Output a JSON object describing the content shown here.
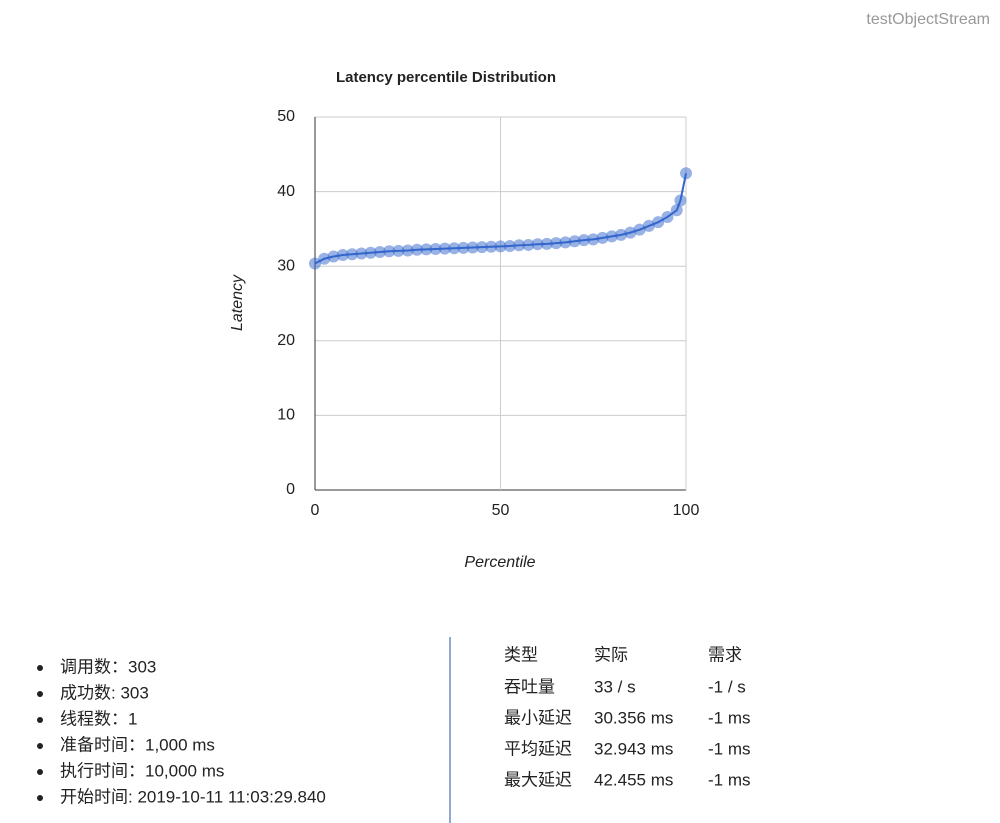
{
  "header": "testObjectStream",
  "chart_data": {
    "type": "line",
    "title": "Latency percentile Distribution",
    "x_label": "Percentile",
    "y_label": "Latency",
    "x": [
      0,
      2.5,
      5,
      7.5,
      10,
      12.5,
      15,
      17.5,
      20,
      22.5,
      25,
      27.5,
      30,
      32.5,
      35,
      37.5,
      40,
      42.5,
      45,
      47.5,
      50,
      52.5,
      55,
      57.5,
      60,
      62.5,
      65,
      67.5,
      70,
      72.5,
      75,
      77.5,
      80,
      82.5,
      85,
      87.5,
      90,
      92.5,
      95,
      97.5,
      98.5,
      100
    ],
    "series": [
      {
        "name": "Latency",
        "color": "#3366cc",
        "values": [
          30.356,
          31.0,
          31.3,
          31.5,
          31.6,
          31.7,
          31.8,
          31.9,
          32.0,
          32.05,
          32.1,
          32.2,
          32.25,
          32.3,
          32.35,
          32.4,
          32.45,
          32.5,
          32.55,
          32.6,
          32.65,
          32.7,
          32.8,
          32.85,
          32.95,
          33.0,
          33.1,
          33.2,
          33.35,
          33.5,
          33.6,
          33.8,
          34.0,
          34.2,
          34.5,
          34.9,
          35.4,
          35.9,
          36.6,
          37.5,
          38.8,
          42.455
        ]
      }
    ],
    "xlim": [
      0,
      100
    ],
    "ylim": [
      0,
      50
    ],
    "xticks": [
      0,
      50,
      100
    ],
    "yticks": [
      0,
      10,
      20,
      30,
      40,
      50
    ],
    "grid": true
  },
  "summary": [
    "调用数：303",
    "成功数: 303",
    "线程数：1",
    "准备时间：1,000 ms",
    "执行时间：10,000 ms",
    "开始时间: 2019-10-11 11:03:29.840"
  ],
  "table": {
    "header": [
      "类型",
      "实际",
      "需求"
    ],
    "rows": [
      [
        "吞吐量",
        "33 / s",
        "-1 / s"
      ],
      [
        "最小延迟",
        "30.356 ms",
        "-1 ms"
      ],
      [
        "平均延迟",
        "32.943 ms",
        "-1 ms"
      ],
      [
        "最大延迟",
        "42.455 ms",
        "-1 ms"
      ]
    ]
  }
}
